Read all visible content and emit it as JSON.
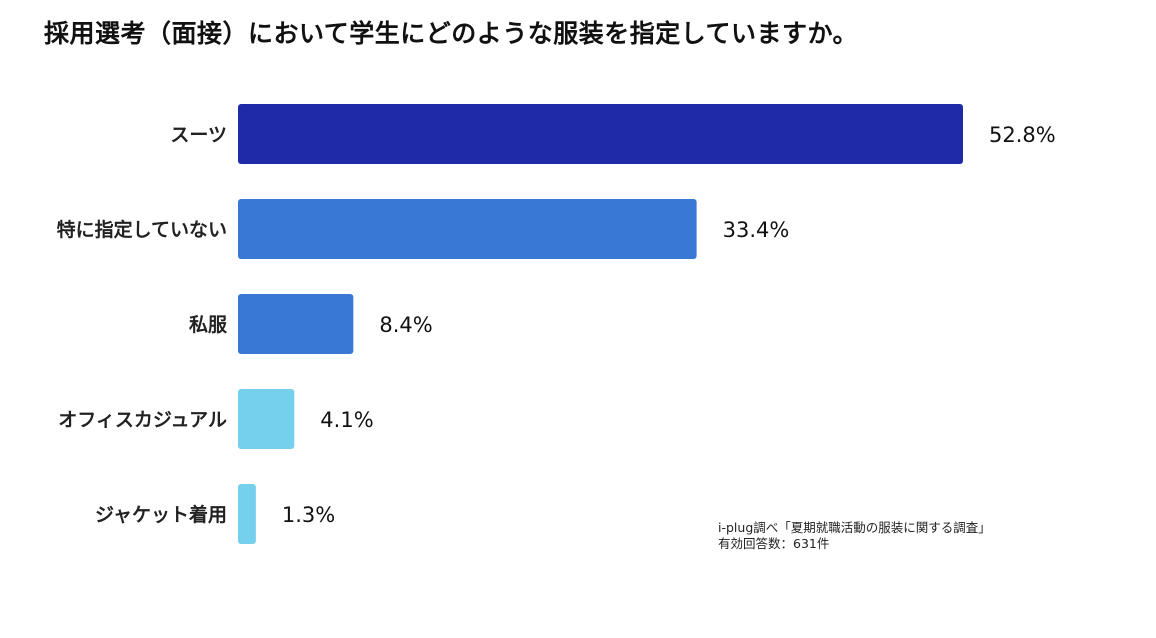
{
  "chart_data": {
    "type": "bar",
    "orientation": "horizontal",
    "title": "採用選考（面接）において学生にどのような服装を指定していますか。",
    "categories": [
      "スーツ",
      "特に指定していない",
      "私服",
      "オフィスカジュアル",
      "ジャケット着用"
    ],
    "values": [
      52.8,
      33.4,
      8.4,
      4.1,
      1.3
    ],
    "value_labels": [
      "52.8%",
      "33.4%",
      "8.4%",
      "4.1%",
      "1.3%"
    ],
    "bar_colors": [
      "#1f2aa8",
      "#3a78d6",
      "#3a78d6",
      "#74d0ec",
      "#74d0ec"
    ],
    "xlim": [
      0,
      52.8
    ],
    "grid": false,
    "legend": "none"
  },
  "source": {
    "line1": "i-plug調べ「夏期就職活動の服装に関する調査」",
    "line2": "有効回答数：631件"
  }
}
